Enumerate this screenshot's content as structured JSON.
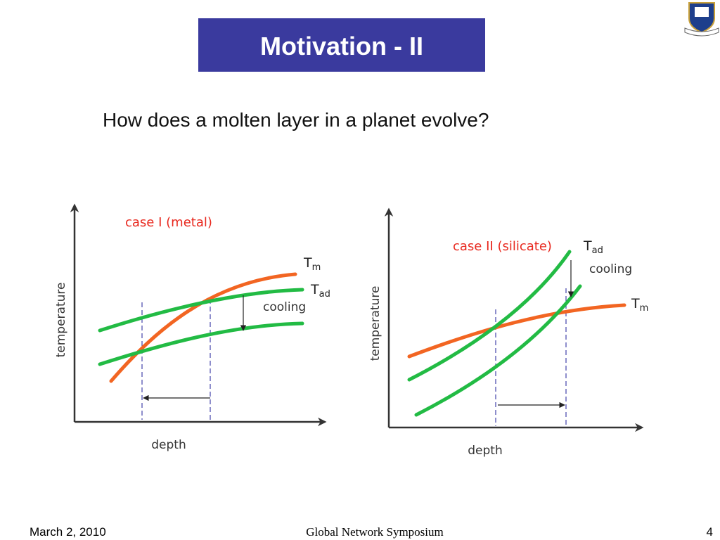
{
  "title": "Motivation - II",
  "question": "How does a molten layer in a planet evolve?",
  "diagrams": [
    {
      "label": "case I (metal)",
      "y_axis": "temperature",
      "x_axis": "depth",
      "annotation": "cooling",
      "curves": [
        {
          "symbol": "T",
          "subscript": "m"
        },
        {
          "symbol": "T",
          "subscript": "ad"
        }
      ]
    },
    {
      "label": "case II (silicate)",
      "y_axis": "temperature",
      "x_axis": "depth",
      "annotation": "cooling",
      "curves": [
        {
          "symbol": "T",
          "subscript": "ad"
        },
        {
          "symbol": "T",
          "subscript": "m"
        }
      ]
    }
  ],
  "footer": {
    "date": "March 2, 2010",
    "event": "Global Network Symposium",
    "page": "4"
  }
}
